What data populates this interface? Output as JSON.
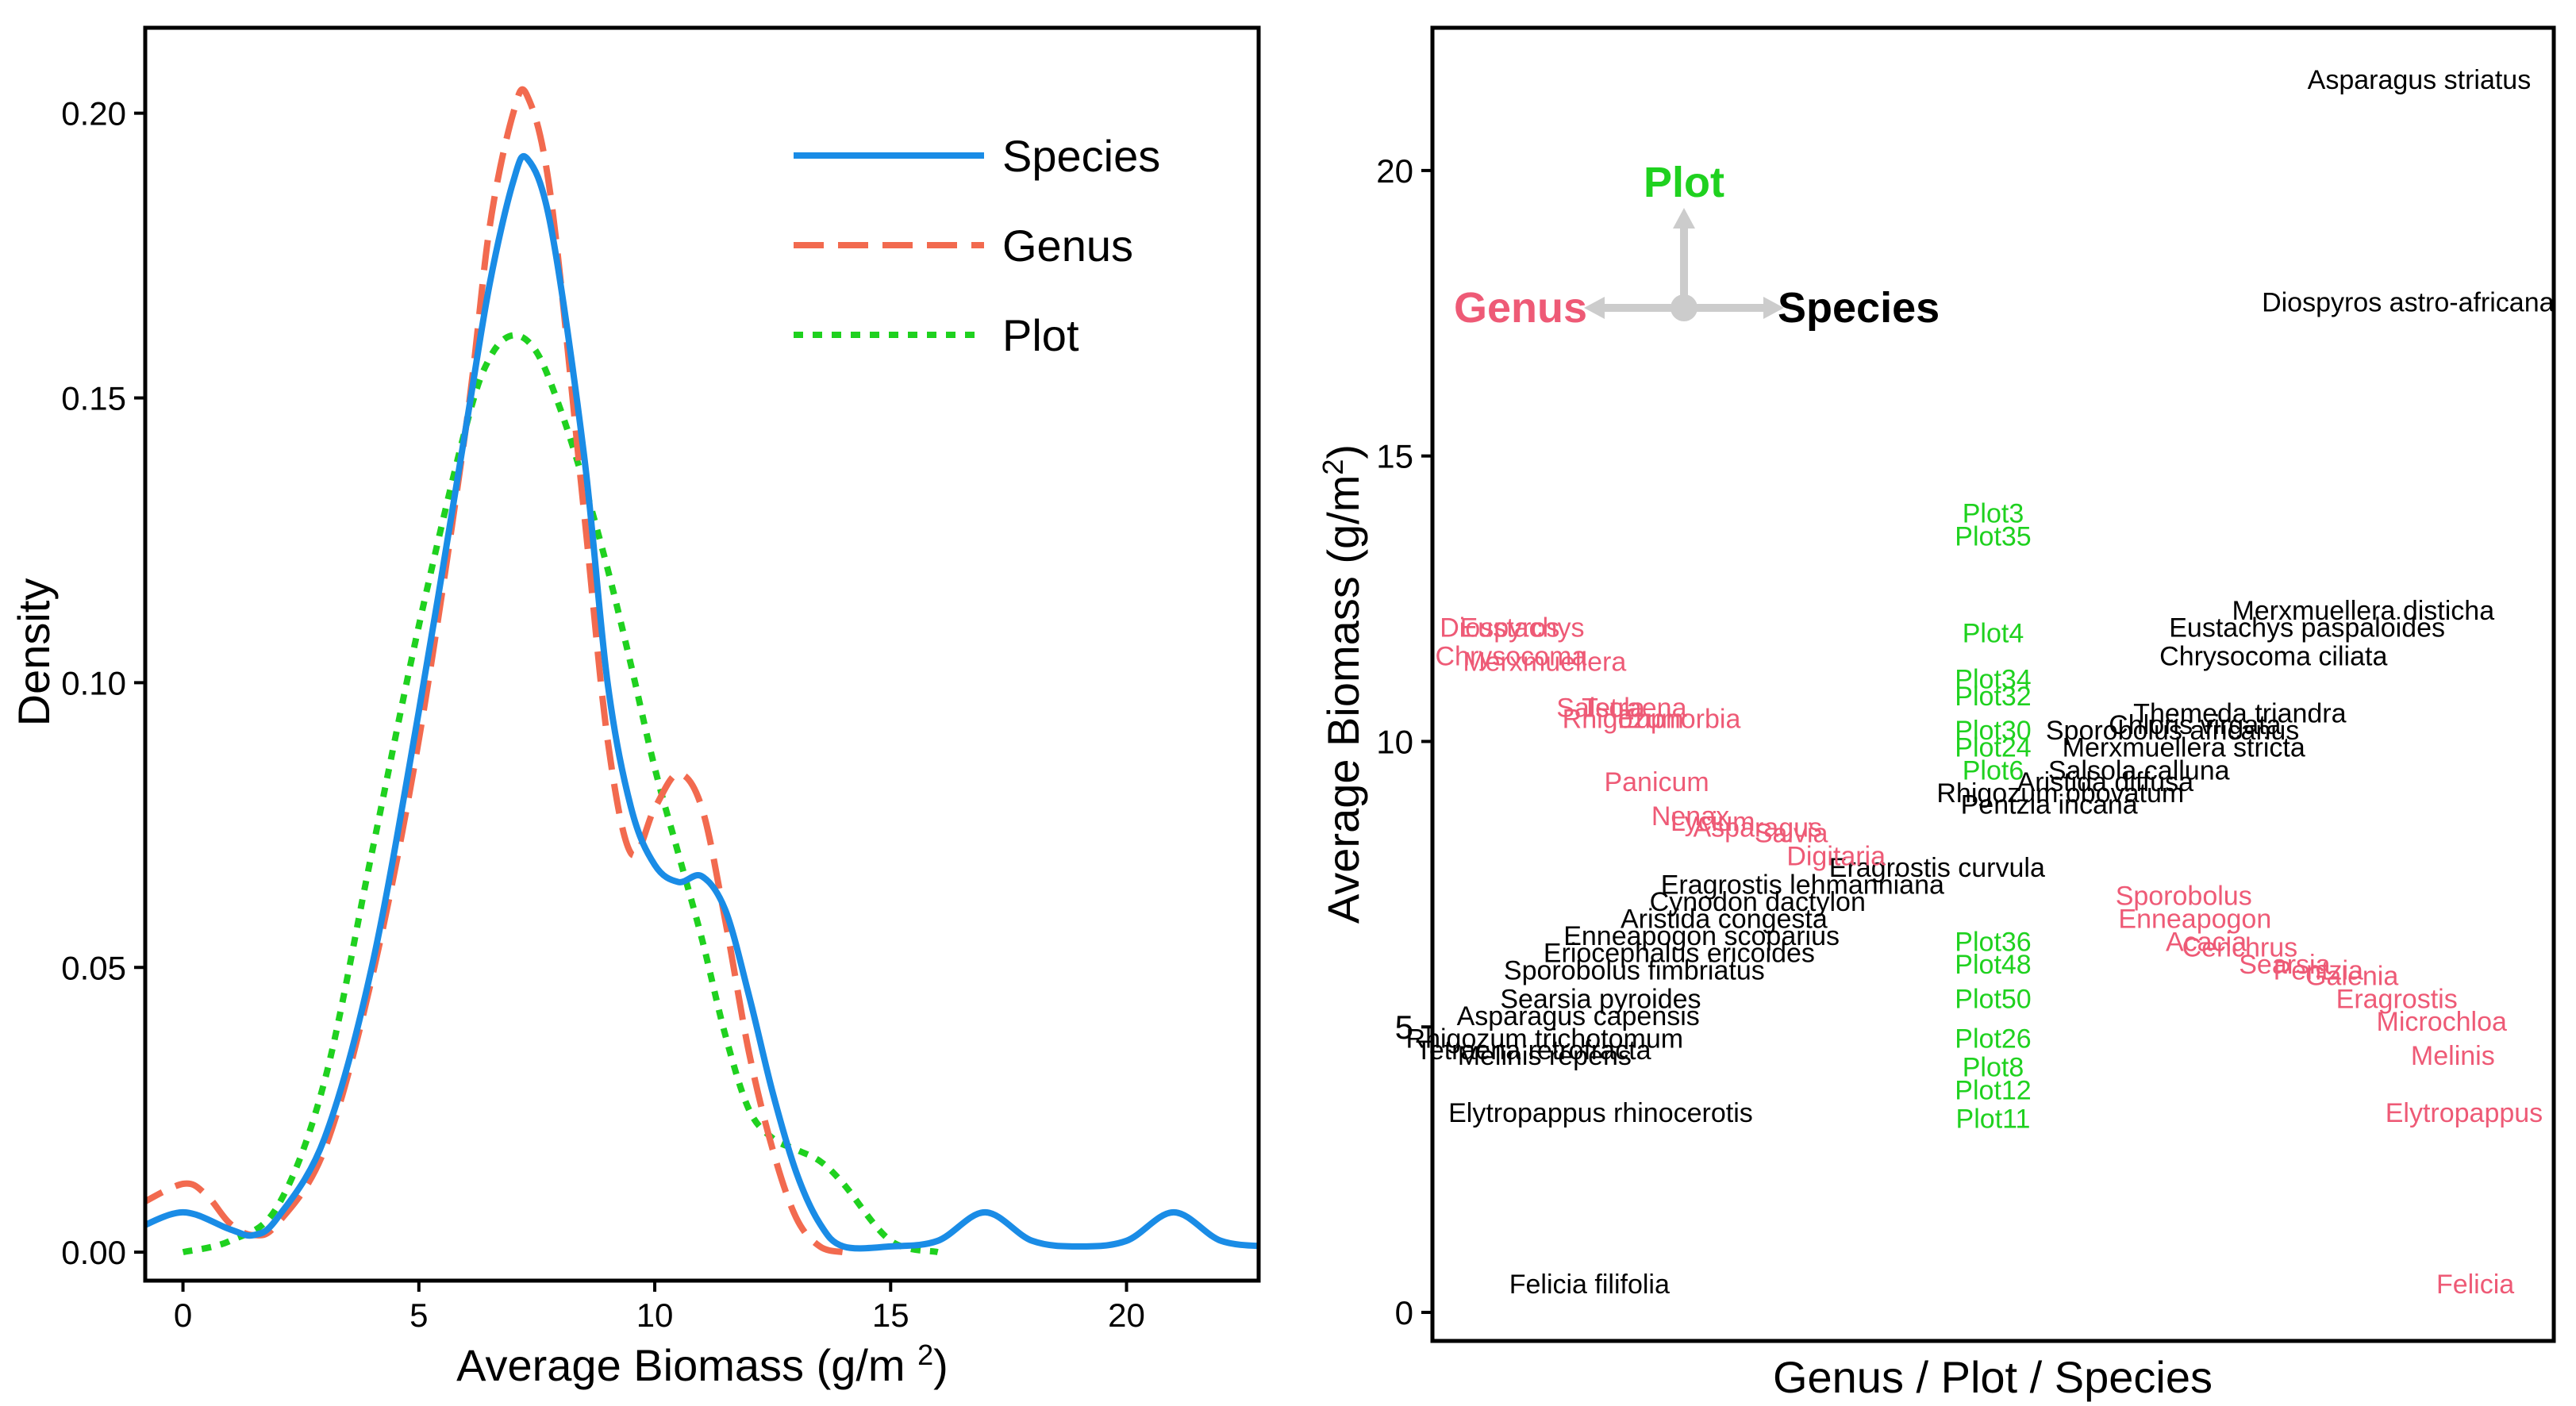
{
  "colors": {
    "species": "#1a8ce6",
    "genus": "#f26a4f",
    "plot": "#1fd11f",
    "genus_label": "#ee5a76",
    "arrow": "#cccccc"
  },
  "chart_data": [
    {
      "type": "line",
      "xlabel": "Average Biomass (g/m²)",
      "ylabel": "Density",
      "xlim": [
        -0.8,
        22.8
      ],
      "ylim": [
        -0.005,
        0.215
      ],
      "xticks": [
        "0",
        "5",
        "10",
        "15",
        "20"
      ],
      "yticks": [
        "0.00",
        "0.05",
        "0.10",
        "0.15",
        "0.20"
      ],
      "legend": "top-right",
      "grid": false,
      "series": [
        {
          "name": "Species",
          "style": "solid",
          "x": [
            -1,
            0,
            1,
            1.5,
            2,
            3,
            4,
            5,
            6,
            6.5,
            7,
            7.3,
            7.8,
            8.5,
            9,
            9.5,
            10,
            10.5,
            11,
            11.5,
            12,
            12.5,
            13,
            13.5,
            14,
            15,
            16,
            17,
            18,
            19,
            20,
            21,
            22,
            23
          ],
          "y": [
            0.004,
            0.007,
            0.004,
            0.003,
            0.006,
            0.02,
            0.05,
            0.095,
            0.145,
            0.17,
            0.188,
            0.192,
            0.18,
            0.14,
            0.1,
            0.078,
            0.068,
            0.065,
            0.066,
            0.06,
            0.045,
            0.028,
            0.014,
            0.005,
            0.001,
            0.001,
            0.002,
            0.007,
            0.002,
            0.001,
            0.002,
            0.007,
            0.002,
            0.001
          ]
        },
        {
          "name": "Genus",
          "style": "dashed",
          "x": [
            -1,
            0,
            0.5,
            1,
            1.5,
            2,
            3,
            4,
            5,
            6,
            6.5,
            7,
            7.3,
            7.8,
            8.5,
            9,
            9.5,
            10,
            10.5,
            11,
            11.5,
            12,
            12.5,
            13,
            13.5,
            14
          ],
          "y": [
            0.008,
            0.012,
            0.01,
            0.005,
            0.003,
            0.005,
            0.018,
            0.048,
            0.09,
            0.145,
            0.18,
            0.2,
            0.203,
            0.185,
            0.13,
            0.09,
            0.07,
            0.078,
            0.084,
            0.078,
            0.058,
            0.035,
            0.018,
            0.006,
            0.001,
            0.0
          ]
        },
        {
          "name": "Plot",
          "style": "dotted",
          "x": [
            0,
            1,
            2,
            3,
            4,
            5,
            6,
            6.5,
            7,
            7.5,
            8,
            8.5,
            9,
            9.5,
            10,
            10.5,
            11,
            11.5,
            12,
            12.5,
            13,
            13.5,
            14,
            15,
            16
          ],
          "y": [
            0.0,
            0.002,
            0.008,
            0.03,
            0.07,
            0.11,
            0.145,
            0.157,
            0.161,
            0.158,
            0.148,
            0.135,
            0.12,
            0.103,
            0.085,
            0.07,
            0.055,
            0.038,
            0.025,
            0.02,
            0.018,
            0.016,
            0.012,
            0.002,
            0.0
          ]
        }
      ]
    },
    {
      "type": "scatter",
      "xlabel": "Genus / Plot / Species",
      "ylabel": "Average Biomass (g/m²)",
      "xlim": [
        0,
        1
      ],
      "ylim": [
        -0.5,
        22.5
      ],
      "yticks": [
        "0",
        "5",
        "10",
        "15",
        "20"
      ],
      "legend": "top-left",
      "components": [
        {
          "label": "Plot",
          "group": "plot"
        },
        {
          "label": "Genus",
          "group": "genus"
        },
        {
          "label": "Species",
          "group": "species"
        }
      ],
      "points": [
        {
          "label": "Asparagus striatus",
          "group": "species",
          "x": 0.88,
          "y": 21.6
        },
        {
          "label": "Diospyros astro-africana",
          "group": "species",
          "x": 0.87,
          "y": 17.7
        },
        {
          "label": "Merxmuellera disticha",
          "group": "species",
          "x": 0.83,
          "y": 12.3
        },
        {
          "label": "Eustachys paspaloides",
          "group": "species",
          "x": 0.78,
          "y": 12.0
        },
        {
          "label": "Chrysocoma ciliata",
          "group": "species",
          "x": 0.75,
          "y": 11.5
        },
        {
          "label": "Themeda triandra",
          "group": "species",
          "x": 0.72,
          "y": 10.5
        },
        {
          "label": "Chloris virgata",
          "group": "species",
          "x": 0.68,
          "y": 10.3
        },
        {
          "label": "Sporobolus africanus",
          "group": "species",
          "x": 0.66,
          "y": 10.2
        },
        {
          "label": "Merxmuellera stricta",
          "group": "species",
          "x": 0.67,
          "y": 9.9
        },
        {
          "label": "Salsola calluna",
          "group": "species",
          "x": 0.63,
          "y": 9.5
        },
        {
          "label": "Aristida diffusa",
          "group": "species",
          "x": 0.6,
          "y": 9.3
        },
        {
          "label": "Rhigozum obovatum",
          "group": "species",
          "x": 0.56,
          "y": 9.1
        },
        {
          "label": "Pentzia incana",
          "group": "species",
          "x": 0.55,
          "y": 8.9
        },
        {
          "label": "Eragrostis curvula",
          "group": "species",
          "x": 0.45,
          "y": 7.8
        },
        {
          "label": "Eragrostis lehmanniana",
          "group": "species",
          "x": 0.33,
          "y": 7.5
        },
        {
          "label": "Cynodon dactylon",
          "group": "species",
          "x": 0.29,
          "y": 7.2
        },
        {
          "label": "Aristida congesta",
          "group": "species",
          "x": 0.26,
          "y": 6.9
        },
        {
          "label": "Enneapogon scoparius",
          "group": "species",
          "x": 0.24,
          "y": 6.6
        },
        {
          "label": "Eriocephalus ericoides",
          "group": "species",
          "x": 0.22,
          "y": 6.3
        },
        {
          "label": "Sporobolus fimbriatus",
          "group": "species",
          "x": 0.18,
          "y": 6.0
        },
        {
          "label": "Searsia pyroides",
          "group": "species",
          "x": 0.15,
          "y": 5.5
        },
        {
          "label": "Asparagus capensis",
          "group": "species",
          "x": 0.13,
          "y": 5.2
        },
        {
          "label": "Rhigozum trichotomum",
          "group": "species",
          "x": 0.1,
          "y": 4.8
        },
        {
          "label": "Tetraena retrofracta",
          "group": "species",
          "x": 0.09,
          "y": 4.6
        },
        {
          "label": "Melinis repens",
          "group": "species",
          "x": 0.1,
          "y": 4.5
        },
        {
          "label": "Elytropappus rhinocerotis",
          "group": "species",
          "x": 0.15,
          "y": 3.5
        },
        {
          "label": "Felicia filifolia",
          "group": "species",
          "x": 0.14,
          "y": 0.5
        },
        {
          "label": "Plot3",
          "group": "plot",
          "x": 0.5,
          "y": 14.0
        },
        {
          "label": "Plot35",
          "group": "plot",
          "x": 0.5,
          "y": 13.6
        },
        {
          "label": "Plot4",
          "group": "plot",
          "x": 0.5,
          "y": 11.9
        },
        {
          "label": "Plot34",
          "group": "plot",
          "x": 0.5,
          "y": 11.1
        },
        {
          "label": "Plot32",
          "group": "plot",
          "x": 0.5,
          "y": 10.8
        },
        {
          "label": "Plot30",
          "group": "plot",
          "x": 0.5,
          "y": 10.2
        },
        {
          "label": "Plot24",
          "group": "plot",
          "x": 0.5,
          "y": 9.9
        },
        {
          "label": "Plot6",
          "group": "plot",
          "x": 0.5,
          "y": 9.5
        },
        {
          "label": "Plot36",
          "group": "plot",
          "x": 0.5,
          "y": 6.5
        },
        {
          "label": "Plot48",
          "group": "plot",
          "x": 0.5,
          "y": 6.1
        },
        {
          "label": "Plot50",
          "group": "plot",
          "x": 0.5,
          "y": 5.5
        },
        {
          "label": "Plot26",
          "group": "plot",
          "x": 0.5,
          "y": 4.8
        },
        {
          "label": "Plot8",
          "group": "plot",
          "x": 0.5,
          "y": 4.3
        },
        {
          "label": "Plot12",
          "group": "plot",
          "x": 0.5,
          "y": 3.9
        },
        {
          "label": "Plot11",
          "group": "plot",
          "x": 0.5,
          "y": 3.4
        },
        {
          "label": "Diospyros",
          "group": "genus",
          "x": 0.06,
          "y": 12.0
        },
        {
          "label": "Eustachys",
          "group": "genus",
          "x": 0.08,
          "y": 12.0
        },
        {
          "label": "Chrysocoma",
          "group": "genus",
          "x": 0.07,
          "y": 11.5
        },
        {
          "label": "Merxmuellera",
          "group": "genus",
          "x": 0.1,
          "y": 11.4
        },
        {
          "label": "Salsola",
          "group": "genus",
          "x": 0.15,
          "y": 10.6
        },
        {
          "label": "Tetraena",
          "group": "genus",
          "x": 0.18,
          "y": 10.6
        },
        {
          "label": "Rhigozum",
          "group": "genus",
          "x": 0.17,
          "y": 10.4
        },
        {
          "label": "Euphorbia",
          "group": "genus",
          "x": 0.22,
          "y": 10.4
        },
        {
          "label": "Panicum",
          "group": "genus",
          "x": 0.2,
          "y": 9.3
        },
        {
          "label": "Nenax",
          "group": "genus",
          "x": 0.23,
          "y": 8.7
        },
        {
          "label": "Lycium",
          "group": "genus",
          "x": 0.25,
          "y": 8.6
        },
        {
          "label": "Asparagus",
          "group": "genus",
          "x": 0.29,
          "y": 8.5
        },
        {
          "label": "Salvia",
          "group": "genus",
          "x": 0.32,
          "y": 8.4
        },
        {
          "label": "Digitaria",
          "group": "genus",
          "x": 0.36,
          "y": 8.0
        },
        {
          "label": "Sporobolus",
          "group": "genus",
          "x": 0.67,
          "y": 7.3
        },
        {
          "label": "Enneapogon",
          "group": "genus",
          "x": 0.68,
          "y": 6.9
        },
        {
          "label": "Acacia",
          "group": "genus",
          "x": 0.69,
          "y": 6.5
        },
        {
          "label": "Cenchrus",
          "group": "genus",
          "x": 0.72,
          "y": 6.4
        },
        {
          "label": "Searsia",
          "group": "genus",
          "x": 0.76,
          "y": 6.1
        },
        {
          "label": "Pentzia",
          "group": "genus",
          "x": 0.79,
          "y": 6.0
        },
        {
          "label": "Galenia",
          "group": "genus",
          "x": 0.82,
          "y": 5.9
        },
        {
          "label": "Eragrostis",
          "group": "genus",
          "x": 0.86,
          "y": 5.5
        },
        {
          "label": "Microchloa",
          "group": "genus",
          "x": 0.9,
          "y": 5.1
        },
        {
          "label": "Melinis",
          "group": "genus",
          "x": 0.91,
          "y": 4.5
        },
        {
          "label": "Elytropappus",
          "group": "genus",
          "x": 0.92,
          "y": 3.5
        },
        {
          "label": "Felicia",
          "group": "genus",
          "x": 0.93,
          "y": 0.5
        }
      ]
    }
  ]
}
